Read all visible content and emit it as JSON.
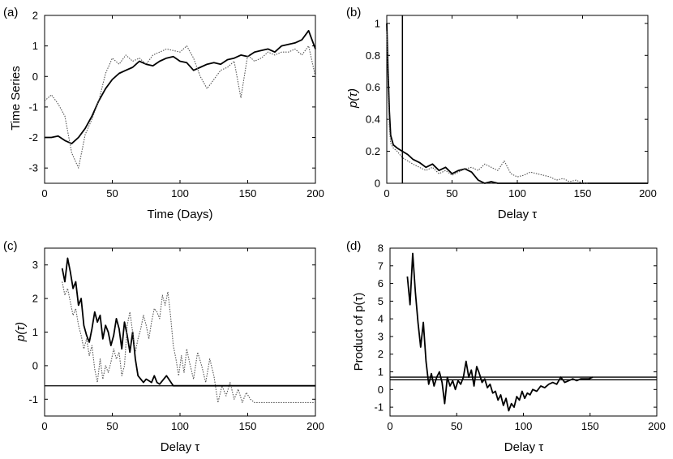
{
  "colors": {
    "series_solid": "#000000",
    "series_dotted": "#555555",
    "axes": "#000000"
  },
  "chart_data": [
    {
      "type": "line",
      "panel_label": "(a)",
      "xlabel": "Time (Days)",
      "ylabel": "Time Series",
      "xlim": [
        0,
        200
      ],
      "ylim": [
        -3.5,
        2
      ],
      "xticks": [
        0,
        50,
        100,
        150,
        200
      ],
      "yticks": [
        -3,
        -2,
        -1,
        0,
        1,
        2
      ],
      "series": [
        {
          "name": "solid",
          "style": "solid",
          "x": [
            0,
            5,
            10,
            15,
            20,
            25,
            30,
            35,
            40,
            45,
            50,
            55,
            60,
            65,
            70,
            75,
            80,
            85,
            90,
            95,
            100,
            105,
            110,
            115,
            120,
            125,
            130,
            135,
            140,
            145,
            150,
            155,
            160,
            165,
            170,
            175,
            180,
            185,
            190,
            195,
            200
          ],
          "y": [
            -2.0,
            -2.0,
            -1.95,
            -2.1,
            -2.2,
            -2.0,
            -1.7,
            -1.3,
            -0.8,
            -0.4,
            -0.1,
            0.1,
            0.2,
            0.3,
            0.5,
            0.4,
            0.35,
            0.5,
            0.6,
            0.65,
            0.5,
            0.45,
            0.2,
            0.3,
            0.4,
            0.45,
            0.4,
            0.55,
            0.6,
            0.7,
            0.65,
            0.8,
            0.85,
            0.9,
            0.8,
            1.0,
            1.05,
            1.1,
            1.2,
            1.5,
            0.9
          ]
        },
        {
          "name": "dotted",
          "style": "dotted",
          "x": [
            0,
            5,
            10,
            15,
            20,
            25,
            30,
            35,
            40,
            45,
            50,
            55,
            60,
            65,
            70,
            75,
            80,
            85,
            90,
            95,
            100,
            105,
            110,
            115,
            120,
            125,
            130,
            135,
            140,
            145,
            150,
            155,
            160,
            165,
            170,
            175,
            180,
            185,
            190,
            195,
            200
          ],
          "y": [
            -0.8,
            -0.6,
            -0.9,
            -1.3,
            -2.5,
            -3.0,
            -1.9,
            -1.4,
            -0.8,
            0.1,
            0.6,
            0.4,
            0.7,
            0.5,
            0.6,
            0.4,
            0.7,
            0.8,
            0.9,
            0.85,
            0.8,
            1.0,
            0.6,
            0.0,
            -0.4,
            -0.1,
            0.2,
            0.3,
            0.5,
            -0.7,
            0.7,
            0.5,
            0.6,
            0.8,
            0.7,
            0.8,
            0.8,
            0.9,
            0.7,
            1.0,
            0.0
          ]
        }
      ],
      "hlines": [],
      "vlines": []
    },
    {
      "type": "line",
      "panel_label": "(b)",
      "xlabel": "Delay τ",
      "ylabel": "p(τ)",
      "xlim": [
        0,
        200
      ],
      "ylim": [
        0,
        1.05
      ],
      "xticks": [
        0,
        50,
        100,
        150,
        200
      ],
      "yticks": [
        0,
        0.2,
        0.4,
        0.6,
        0.8,
        1
      ],
      "series": [
        {
          "name": "solid",
          "style": "solid",
          "x": [
            0,
            1,
            2,
            3,
            5,
            8,
            12,
            16,
            20,
            25,
            30,
            35,
            40,
            45,
            50,
            55,
            60,
            65,
            70,
            75,
            80,
            85,
            90,
            95,
            100,
            150,
            200
          ],
          "y": [
            1.0,
            0.7,
            0.45,
            0.3,
            0.24,
            0.22,
            0.2,
            0.18,
            0.15,
            0.13,
            0.1,
            0.12,
            0.08,
            0.1,
            0.06,
            0.08,
            0.09,
            0.07,
            0.02,
            0.0,
            0.01,
            0.0,
            0.0,
            0.0,
            0.0,
            0.0,
            0.0
          ]
        },
        {
          "name": "dotted",
          "style": "dotted",
          "x": [
            0,
            1,
            2,
            3,
            5,
            8,
            12,
            16,
            20,
            25,
            30,
            35,
            40,
            45,
            50,
            55,
            60,
            65,
            70,
            75,
            80,
            85,
            90,
            95,
            100,
            105,
            110,
            115,
            120,
            125,
            130,
            135,
            140,
            145,
            150,
            155
          ],
          "y": [
            0.95,
            0.6,
            0.35,
            0.25,
            0.22,
            0.2,
            0.16,
            0.14,
            0.12,
            0.1,
            0.08,
            0.1,
            0.06,
            0.08,
            0.05,
            0.07,
            0.09,
            0.1,
            0.08,
            0.12,
            0.1,
            0.08,
            0.14,
            0.06,
            0.04,
            0.05,
            0.07,
            0.06,
            0.05,
            0.04,
            0.02,
            0.03,
            0.01,
            0.02,
            0.0,
            0.0
          ]
        }
      ],
      "hlines": [],
      "vlines": [
        12
      ]
    },
    {
      "type": "line",
      "panel_label": "(c)",
      "xlabel": "Delay τ",
      "ylabel": "p(τ)",
      "xlim": [
        0,
        200
      ],
      "ylim": [
        -1.5,
        3.5
      ],
      "xticks": [
        0,
        50,
        100,
        150,
        200
      ],
      "yticks": [
        -1,
        0,
        1,
        2,
        3
      ],
      "series": [
        {
          "name": "solid",
          "style": "solid",
          "x": [
            13,
            15,
            17,
            19,
            21,
            23,
            25,
            27,
            29,
            31,
            33,
            35,
            37,
            39,
            41,
            43,
            45,
            47,
            49,
            51,
            53,
            55,
            57,
            59,
            61,
            63,
            65,
            67,
            69,
            71,
            73,
            75,
            77,
            79,
            81,
            83,
            85,
            90,
            95,
            100,
            150,
            200
          ],
          "y": [
            2.9,
            2.5,
            3.2,
            2.8,
            2.3,
            2.5,
            1.8,
            2.0,
            1.2,
            0.9,
            0.7,
            1.1,
            1.6,
            1.3,
            1.5,
            0.8,
            1.2,
            1.0,
            0.6,
            0.9,
            1.4,
            1.1,
            0.5,
            1.3,
            0.9,
            0.4,
            1.0,
            0.2,
            -0.3,
            -0.4,
            -0.5,
            -0.4,
            -0.45,
            -0.5,
            -0.3,
            -0.5,
            -0.55,
            -0.3,
            -0.6,
            -0.6,
            -0.6,
            -0.6
          ]
        },
        {
          "name": "dotted",
          "style": "dotted",
          "x": [
            13,
            15,
            17,
            19,
            21,
            23,
            25,
            27,
            29,
            31,
            33,
            35,
            37,
            39,
            41,
            43,
            45,
            47,
            49,
            51,
            53,
            55,
            57,
            59,
            61,
            63,
            65,
            67,
            69,
            71,
            73,
            75,
            77,
            79,
            81,
            83,
            85,
            87,
            89,
            91,
            93,
            95,
            97,
            99,
            101,
            103,
            105,
            107,
            110,
            113,
            116,
            119,
            122,
            125,
            128,
            131,
            134,
            137,
            140,
            143,
            146,
            149,
            152,
            155,
            160,
            200
          ],
          "y": [
            2.5,
            2.1,
            2.3,
            1.9,
            1.5,
            1.7,
            1.2,
            0.9,
            0.5,
            0.8,
            0.3,
            0.6,
            -0.1,
            -0.5,
            0.2,
            -0.4,
            0.0,
            -0.2,
            0.1,
            0.5,
            0.2,
            0.4,
            -0.3,
            0.0,
            1.2,
            1.6,
            1.0,
            0.4,
            0.8,
            1.1,
            1.5,
            1.2,
            0.8,
            1.3,
            1.7,
            1.6,
            1.4,
            2.1,
            1.8,
            2.2,
            1.5,
            0.6,
            0.2,
            -0.3,
            0.3,
            -0.2,
            0.5,
            0.1,
            -0.4,
            0.4,
            0.0,
            -0.5,
            0.2,
            -0.3,
            -1.1,
            -0.6,
            -0.9,
            -0.5,
            -1.0,
            -0.7,
            -1.1,
            -0.8,
            -1.0,
            -1.1,
            -1.1,
            -1.1
          ]
        }
      ],
      "hlines": [
        -0.6
      ],
      "vlines": []
    },
    {
      "type": "line",
      "panel_label": "(d)",
      "xlabel": "Delay τ",
      "ylabel": "Product of p(τ)",
      "xlim": [
        0,
        200
      ],
      "ylim": [
        -1.5,
        8
      ],
      "xticks": [
        0,
        50,
        100,
        150,
        200
      ],
      "yticks": [
        -1,
        0,
        1,
        2,
        3,
        4,
        5,
        6,
        7,
        8
      ],
      "series": [
        {
          "name": "solid",
          "style": "solid",
          "x": [
            13,
            15,
            17,
            19,
            21,
            23,
            25,
            27,
            29,
            31,
            33,
            35,
            37,
            39,
            41,
            43,
            45,
            47,
            49,
            51,
            53,
            55,
            57,
            59,
            61,
            63,
            65,
            67,
            69,
            71,
            73,
            75,
            77,
            79,
            81,
            83,
            85,
            87,
            89,
            91,
            93,
            95,
            97,
            99,
            101,
            103,
            105,
            107,
            110,
            113,
            116,
            119,
            122,
            125,
            128,
            131,
            134,
            137,
            140,
            143,
            146,
            149,
            152
          ],
          "y": [
            6.4,
            4.8,
            7.7,
            5.5,
            3.8,
            2.4,
            3.8,
            1.6,
            0.3,
            0.9,
            0.2,
            0.7,
            1.0,
            0.4,
            -0.8,
            0.7,
            0.2,
            0.5,
            0.0,
            0.5,
            0.3,
            0.7,
            1.6,
            0.7,
            1.1,
            0.2,
            1.3,
            0.9,
            0.4,
            0.6,
            0.1,
            0.3,
            -0.2,
            -0.1,
            -0.6,
            -0.3,
            -0.9,
            -0.5,
            -1.2,
            -0.8,
            -1.0,
            -0.4,
            -0.6,
            -0.1,
            -0.5,
            -0.2,
            -0.3,
            0.0,
            -0.1,
            0.2,
            0.1,
            0.3,
            0.4,
            0.3,
            0.7,
            0.4,
            0.5,
            0.6,
            0.5,
            0.6,
            0.6,
            0.6,
            0.7
          ]
        }
      ],
      "hlines": [
        0.55,
        0.7
      ],
      "vlines": []
    }
  ]
}
